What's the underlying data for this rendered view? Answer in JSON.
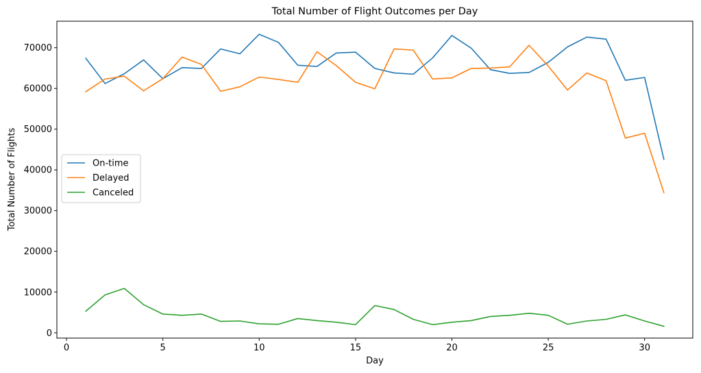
{
  "chart_data": {
    "type": "line",
    "title": "Total Number of Flight Outcomes per Day",
    "xlabel": "Day",
    "ylabel": "Total Number of Flights",
    "xlim": [
      -0.5,
      32.5
    ],
    "ylim": [
      -1300,
      76500
    ],
    "xticks": [
      0,
      5,
      10,
      15,
      20,
      25,
      30
    ],
    "yticks": [
      0,
      10000,
      20000,
      30000,
      40000,
      50000,
      60000,
      70000
    ],
    "grid": false,
    "legend": "center-left",
    "x": [
      1,
      2,
      3,
      4,
      5,
      6,
      7,
      8,
      9,
      10,
      11,
      12,
      13,
      14,
      15,
      16,
      17,
      18,
      19,
      20,
      21,
      22,
      23,
      24,
      25,
      26,
      27,
      28,
      29,
      30,
      31
    ],
    "series": [
      {
        "name": "On-time",
        "color": "#1f77b4",
        "values": [
          67400,
          61200,
          63600,
          67000,
          62400,
          65100,
          64900,
          69700,
          68500,
          73300,
          71300,
          65700,
          65400,
          68700,
          68900,
          64900,
          63800,
          63500,
          67500,
          73000,
          69900,
          64600,
          63700,
          63900,
          66400,
          70200,
          72600,
          72100,
          62000,
          62700,
          42600
        ]
      },
      {
        "name": "Delayed",
        "color": "#ff7f0e",
        "values": [
          59200,
          62300,
          63000,
          59400,
          62400,
          67700,
          65900,
          59300,
          60400,
          62800,
          62200,
          61500,
          69000,
          65600,
          61500,
          59900,
          69700,
          69400,
          62300,
          62600,
          64900,
          65000,
          65300,
          70600,
          65500,
          59600,
          63800,
          61900,
          47800,
          49000,
          34400
        ]
      },
      {
        "name": "Canceled",
        "color": "#2ca02c",
        "values": [
          5300,
          9300,
          10900,
          6900,
          4600,
          4300,
          4600,
          2800,
          2900,
          2200,
          2100,
          3500,
          3000,
          2600,
          2000,
          6700,
          5700,
          3300,
          2000,
          2600,
          3000,
          4000,
          4300,
          4800,
          4300,
          2100,
          2900,
          3300,
          4400,
          2900,
          1600
        ]
      }
    ]
  }
}
